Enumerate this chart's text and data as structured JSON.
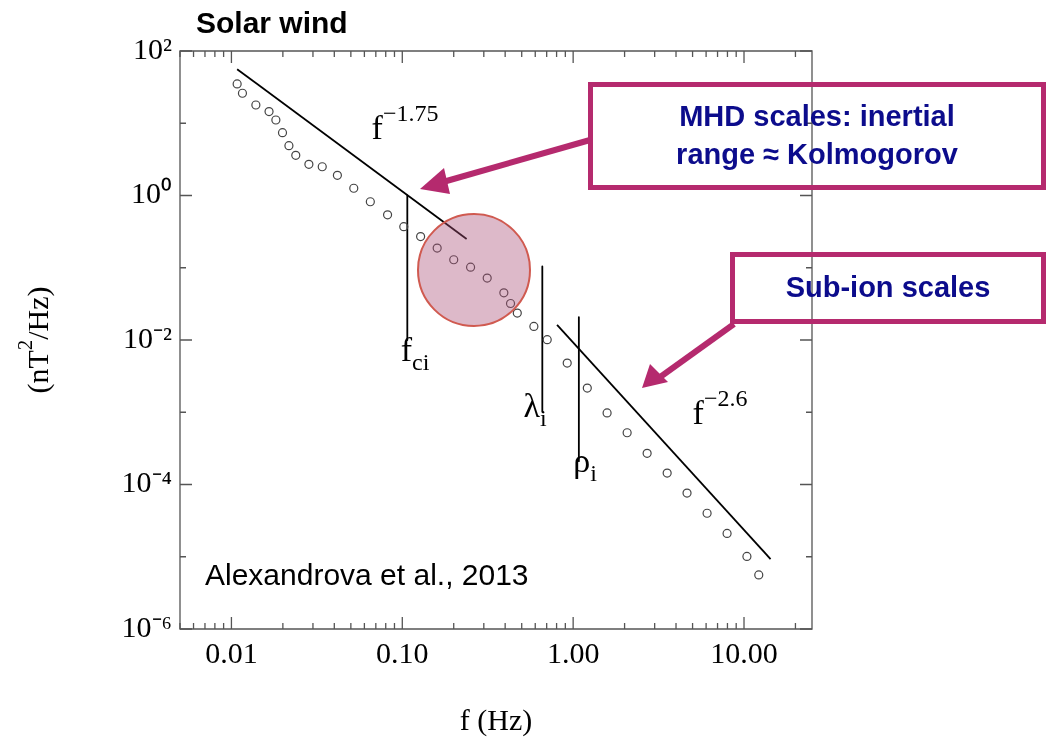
{
  "chart_data": {
    "type": "scatter",
    "title": "Solar wind",
    "xlabel": "f (Hz)",
    "ylabel": "(nT$^{2}$/Hz)",
    "log": "xy",
    "grid": false,
    "legend": false,
    "xlim": [
      0.005,
      25
    ],
    "ylim": [
      1e-06,
      100
    ],
    "xticks": [
      {
        "value": 0.005,
        "label": null
      },
      {
        "value": 0.006,
        "label": null
      },
      {
        "value": 0.007,
        "label": null
      },
      {
        "value": 0.008,
        "label": null
      },
      {
        "value": 0.009,
        "label": null
      },
      {
        "value": 0.01,
        "label": "0.01"
      },
      {
        "value": 0.02,
        "label": null
      },
      {
        "value": 0.03,
        "label": null
      },
      {
        "value": 0.04,
        "label": null
      },
      {
        "value": 0.05,
        "label": null
      },
      {
        "value": 0.06,
        "label": null
      },
      {
        "value": 0.07,
        "label": null
      },
      {
        "value": 0.08,
        "label": null
      },
      {
        "value": 0.09,
        "label": null
      },
      {
        "value": 0.1,
        "label": "0.10"
      },
      {
        "value": 0.2,
        "label": null
      },
      {
        "value": 0.3,
        "label": null
      },
      {
        "value": 0.4,
        "label": null
      },
      {
        "value": 0.5,
        "label": null
      },
      {
        "value": 0.6,
        "label": null
      },
      {
        "value": 0.7,
        "label": null
      },
      {
        "value": 0.8,
        "label": null
      },
      {
        "value": 0.9,
        "label": null
      },
      {
        "value": 1,
        "label": "1.00"
      },
      {
        "value": 2,
        "label": null
      },
      {
        "value": 3,
        "label": null
      },
      {
        "value": 4,
        "label": null
      },
      {
        "value": 5,
        "label": null
      },
      {
        "value": 6,
        "label": null
      },
      {
        "value": 7,
        "label": null
      },
      {
        "value": 8,
        "label": null
      },
      {
        "value": 9,
        "label": null
      },
      {
        "value": 10,
        "label": "10.00"
      },
      {
        "value": 20,
        "label": null
      }
    ],
    "yticks": [
      {
        "value": 100,
        "label": "10²"
      },
      {
        "value": 10,
        "label": null
      },
      {
        "value": 1,
        "label": "10⁰"
      },
      {
        "value": 0.1,
        "label": null
      },
      {
        "value": 0.01,
        "label": "10⁻²"
      },
      {
        "value": 0.001,
        "label": null
      },
      {
        "value": 0.0001,
        "label": "10⁻⁴"
      },
      {
        "value": 1e-05,
        "label": null
      },
      {
        "value": 1e-06,
        "label": "10⁻⁶"
      }
    ],
    "series": [
      {
        "marker": "circle",
        "color": "#444444",
        "x": [
          0.0108,
          0.0116,
          0.0139,
          0.0166,
          0.0182,
          0.0199,
          0.0217,
          0.0238,
          0.0284,
          0.034,
          0.0417,
          0.052,
          0.065,
          0.082,
          0.102,
          0.128,
          0.16,
          0.2,
          0.251,
          0.314,
          0.393,
          0.43,
          0.471,
          0.589,
          0.705,
          0.923,
          1.21,
          1.58,
          2.07,
          2.71,
          3.55,
          4.64,
          6.08,
          7.96,
          10.4,
          12.2
        ],
        "values": [
          35,
          26,
          17.9,
          14.5,
          11.1,
          7.4,
          4.9,
          3.6,
          2.7,
          2.5,
          1.9,
          1.26,
          0.82,
          0.54,
          0.37,
          0.27,
          0.187,
          0.129,
          0.102,
          0.072,
          0.045,
          0.032,
          0.0236,
          0.0154,
          0.0101,
          0.0048,
          0.00216,
          0.00098,
          0.00052,
          0.00027,
          0.000144,
          7.6e-05,
          4e-05,
          2.1e-05,
          1.01e-05,
          5.6e-06
        ]
      },
      {
        "type": "line",
        "marker": "none",
        "color": "#000000",
        "x": [
          0.0108,
          0.238
        ],
        "values": [
          56,
          0.25
        ]
      },
      {
        "type": "line",
        "marker": "none",
        "color": "#000000",
        "x": [
          0.805,
          14.3
        ],
        "values": [
          0.0162,
          9.3e-06
        ]
      },
      {
        "type": "line",
        "marker": "none",
        "color": "#000000",
        "x": [
          0.107,
          0.107
        ],
        "values": [
          1,
          0.01
        ]
      },
      {
        "type": "line",
        "marker": "none",
        "color": "#000000",
        "x": [
          0.66,
          0.66
        ],
        "values": [
          0.104,
          0.00102
        ]
      },
      {
        "type": "line",
        "marker": "none",
        "color": "#000000",
        "x": [
          1.08,
          1.08
        ],
        "values": [
          0.0207,
          0.00021
        ]
      }
    ],
    "annotations": [
      "MHD scales: inertial range ≈ Kolmogorov",
      "Sub-ion scales",
      "Alexandrova et al., 2013",
      "f$^{−1.75}$",
      "f$_{ci}$",
      "λ$_{i}$",
      "ρ$_{i}$",
      "f$^{−2.6}$"
    ]
  }
}
